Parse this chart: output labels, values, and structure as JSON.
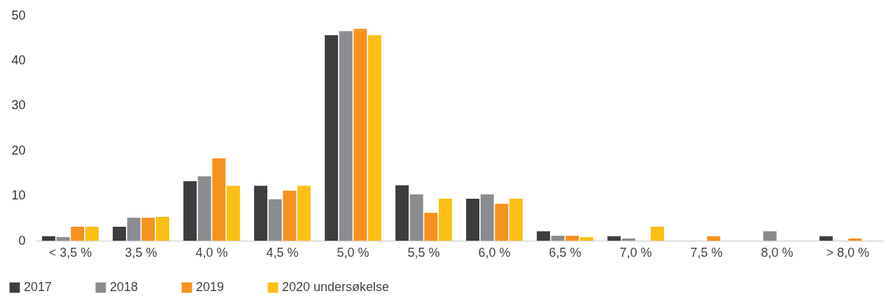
{
  "chart_data": {
    "type": "bar",
    "categories": [
      "< 3,5 %",
      "3,5 %",
      "4,0 %",
      "4,5 %",
      "5,0 %",
      "5,5 %",
      "6,0 %",
      "6,5 %",
      "7,0 %",
      "7,5 %",
      "8,0 %",
      "> 8,0 %"
    ],
    "series": [
      {
        "name": "2017",
        "color": "#3d3d3d",
        "values": [
          1,
          3.1,
          13.2,
          12.2,
          45.6,
          12.3,
          9.3,
          2.1,
          1,
          0,
          0,
          1
        ]
      },
      {
        "name": "2018",
        "color": "#8b8c8f",
        "values": [
          0.8,
          5.1,
          14.3,
          9.2,
          46.5,
          10.3,
          10.3,
          1.1,
          0.5,
          0,
          2.1,
          0
        ]
      },
      {
        "name": "2019",
        "color": "#f6921e",
        "values": [
          3.1,
          5.1,
          18.3,
          11.1,
          47,
          6.2,
          8.2,
          1.1,
          0,
          1,
          0,
          0.5
        ]
      },
      {
        "name": "2020 undersøkelse",
        "color": "#fcbf14",
        "values": [
          3.1,
          5.3,
          12.2,
          12.2,
          45.6,
          9.3,
          9.3,
          0.8,
          3.1,
          0,
          0,
          0
        ]
      }
    ],
    "ylim": [
      0,
      50
    ],
    "yticks": [
      0,
      10,
      20,
      30,
      40,
      50
    ],
    "grid": false,
    "legend": "bottom left"
  }
}
